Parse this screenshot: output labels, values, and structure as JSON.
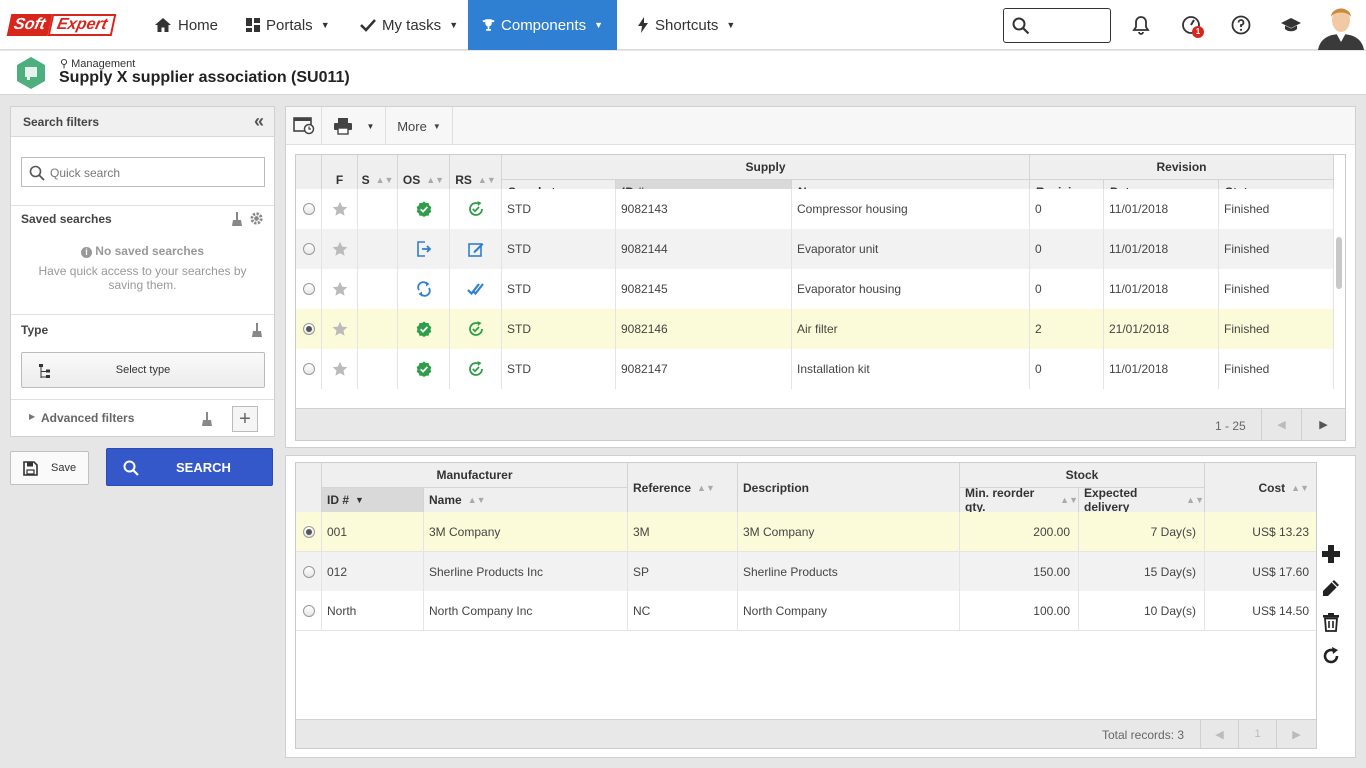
{
  "brand": {
    "part1": "Soft",
    "part2": "Expert",
    "primary": "#d9261c"
  },
  "nav": {
    "home": "Home",
    "portals": "Portals",
    "my_tasks": "My tasks",
    "components": "Components",
    "shortcuts": "Shortcuts",
    "notification_count": "1",
    "active_color": "#2f7fd2"
  },
  "header": {
    "breadcrumb": "Management",
    "title": "Supply X supplier association (SU011)"
  },
  "filters": {
    "title": "Search filters",
    "quick_search_placeholder": "Quick search",
    "saved_searches_title": "Saved searches",
    "no_saved_title": "No saved searches",
    "no_saved_text1": "Have quick access to your searches by",
    "no_saved_text2": "saving them.",
    "type_title": "Type",
    "select_type": "Select type",
    "advanced": "Advanced filters",
    "save": "Save",
    "search": "SEARCH",
    "search_color": "#3457c9"
  },
  "toolbar": {
    "more": "More"
  },
  "supply_grid": {
    "group_supply": "Supply",
    "group_revision": "Revision",
    "col_f": "F",
    "col_s": "S",
    "col_os": "OS",
    "col_rs": "RS",
    "col_supply_type": "Supply type",
    "col_id": "ID #",
    "col_name": "Name",
    "col_revision": "Revision",
    "col_date": "Date",
    "col_status": "Status",
    "rows": [
      {
        "type": "STD",
        "id": "9082143",
        "name": "Compressor housing",
        "revision": "0",
        "date": "11/01/2018",
        "status": "Finished",
        "os": "verified-icon",
        "rs": "check-cycle-icon",
        "selected": false
      },
      {
        "type": "STD",
        "id": "9082144",
        "name": "Evaporator unit",
        "revision": "0",
        "date": "11/01/2018",
        "status": "Finished",
        "os": "arrow-out-icon",
        "rs": "edit-icon",
        "selected": false
      },
      {
        "type": "STD",
        "id": "9082145",
        "name": "Evaporator housing",
        "revision": "0",
        "date": "11/01/2018",
        "status": "Finished",
        "os": "sync-icon",
        "rs": "double-check-icon",
        "selected": false
      },
      {
        "type": "STD",
        "id": "9082146",
        "name": "Air filter",
        "revision": "2",
        "date": "21/01/2018",
        "status": "Finished",
        "os": "verified-icon",
        "rs": "check-cycle-icon",
        "selected": true
      },
      {
        "type": "STD",
        "id": "9082147",
        "name": "Installation kit",
        "revision": "0",
        "date": "11/01/2018",
        "status": "Finished",
        "os": "verified-icon",
        "rs": "check-cycle-icon",
        "selected": false
      }
    ],
    "range": "1 - 25"
  },
  "manufacturer_grid": {
    "group_manufacturer": "Manufacturer",
    "group_stock": "Stock",
    "col_id": "ID #",
    "col_name": "Name",
    "col_reference": "Reference",
    "col_description": "Description",
    "col_min_reorder": "Min. reorder qty.",
    "col_expected_delivery": "Expected delivery",
    "col_cost": "Cost",
    "rows": [
      {
        "id": "001",
        "name": "3M Company",
        "reference": "3M",
        "description": "3M Company",
        "min": "200.00",
        "delivery": "7 Day(s)",
        "cost": "US$ 13.23",
        "selected": true
      },
      {
        "id": "012",
        "name": "Sherline Products Inc",
        "reference": "SP",
        "description": "Sherline Products",
        "min": "150.00",
        "delivery": "15 Day(s)",
        "cost": "US$ 17.60",
        "selected": false
      },
      {
        "id": "North",
        "name": "North Company Inc",
        "reference": "NC",
        "description": "North Company",
        "min": "100.00",
        "delivery": "10 Day(s)",
        "cost": "US$ 14.50",
        "selected": false
      }
    ],
    "total": "Total records: 3",
    "page": "1"
  },
  "colors": {
    "selected_row": "#fbfbd9",
    "alt_row": "#f2f2f2",
    "status_green": "#2e9e48",
    "status_blue": "#2f7fd2"
  }
}
